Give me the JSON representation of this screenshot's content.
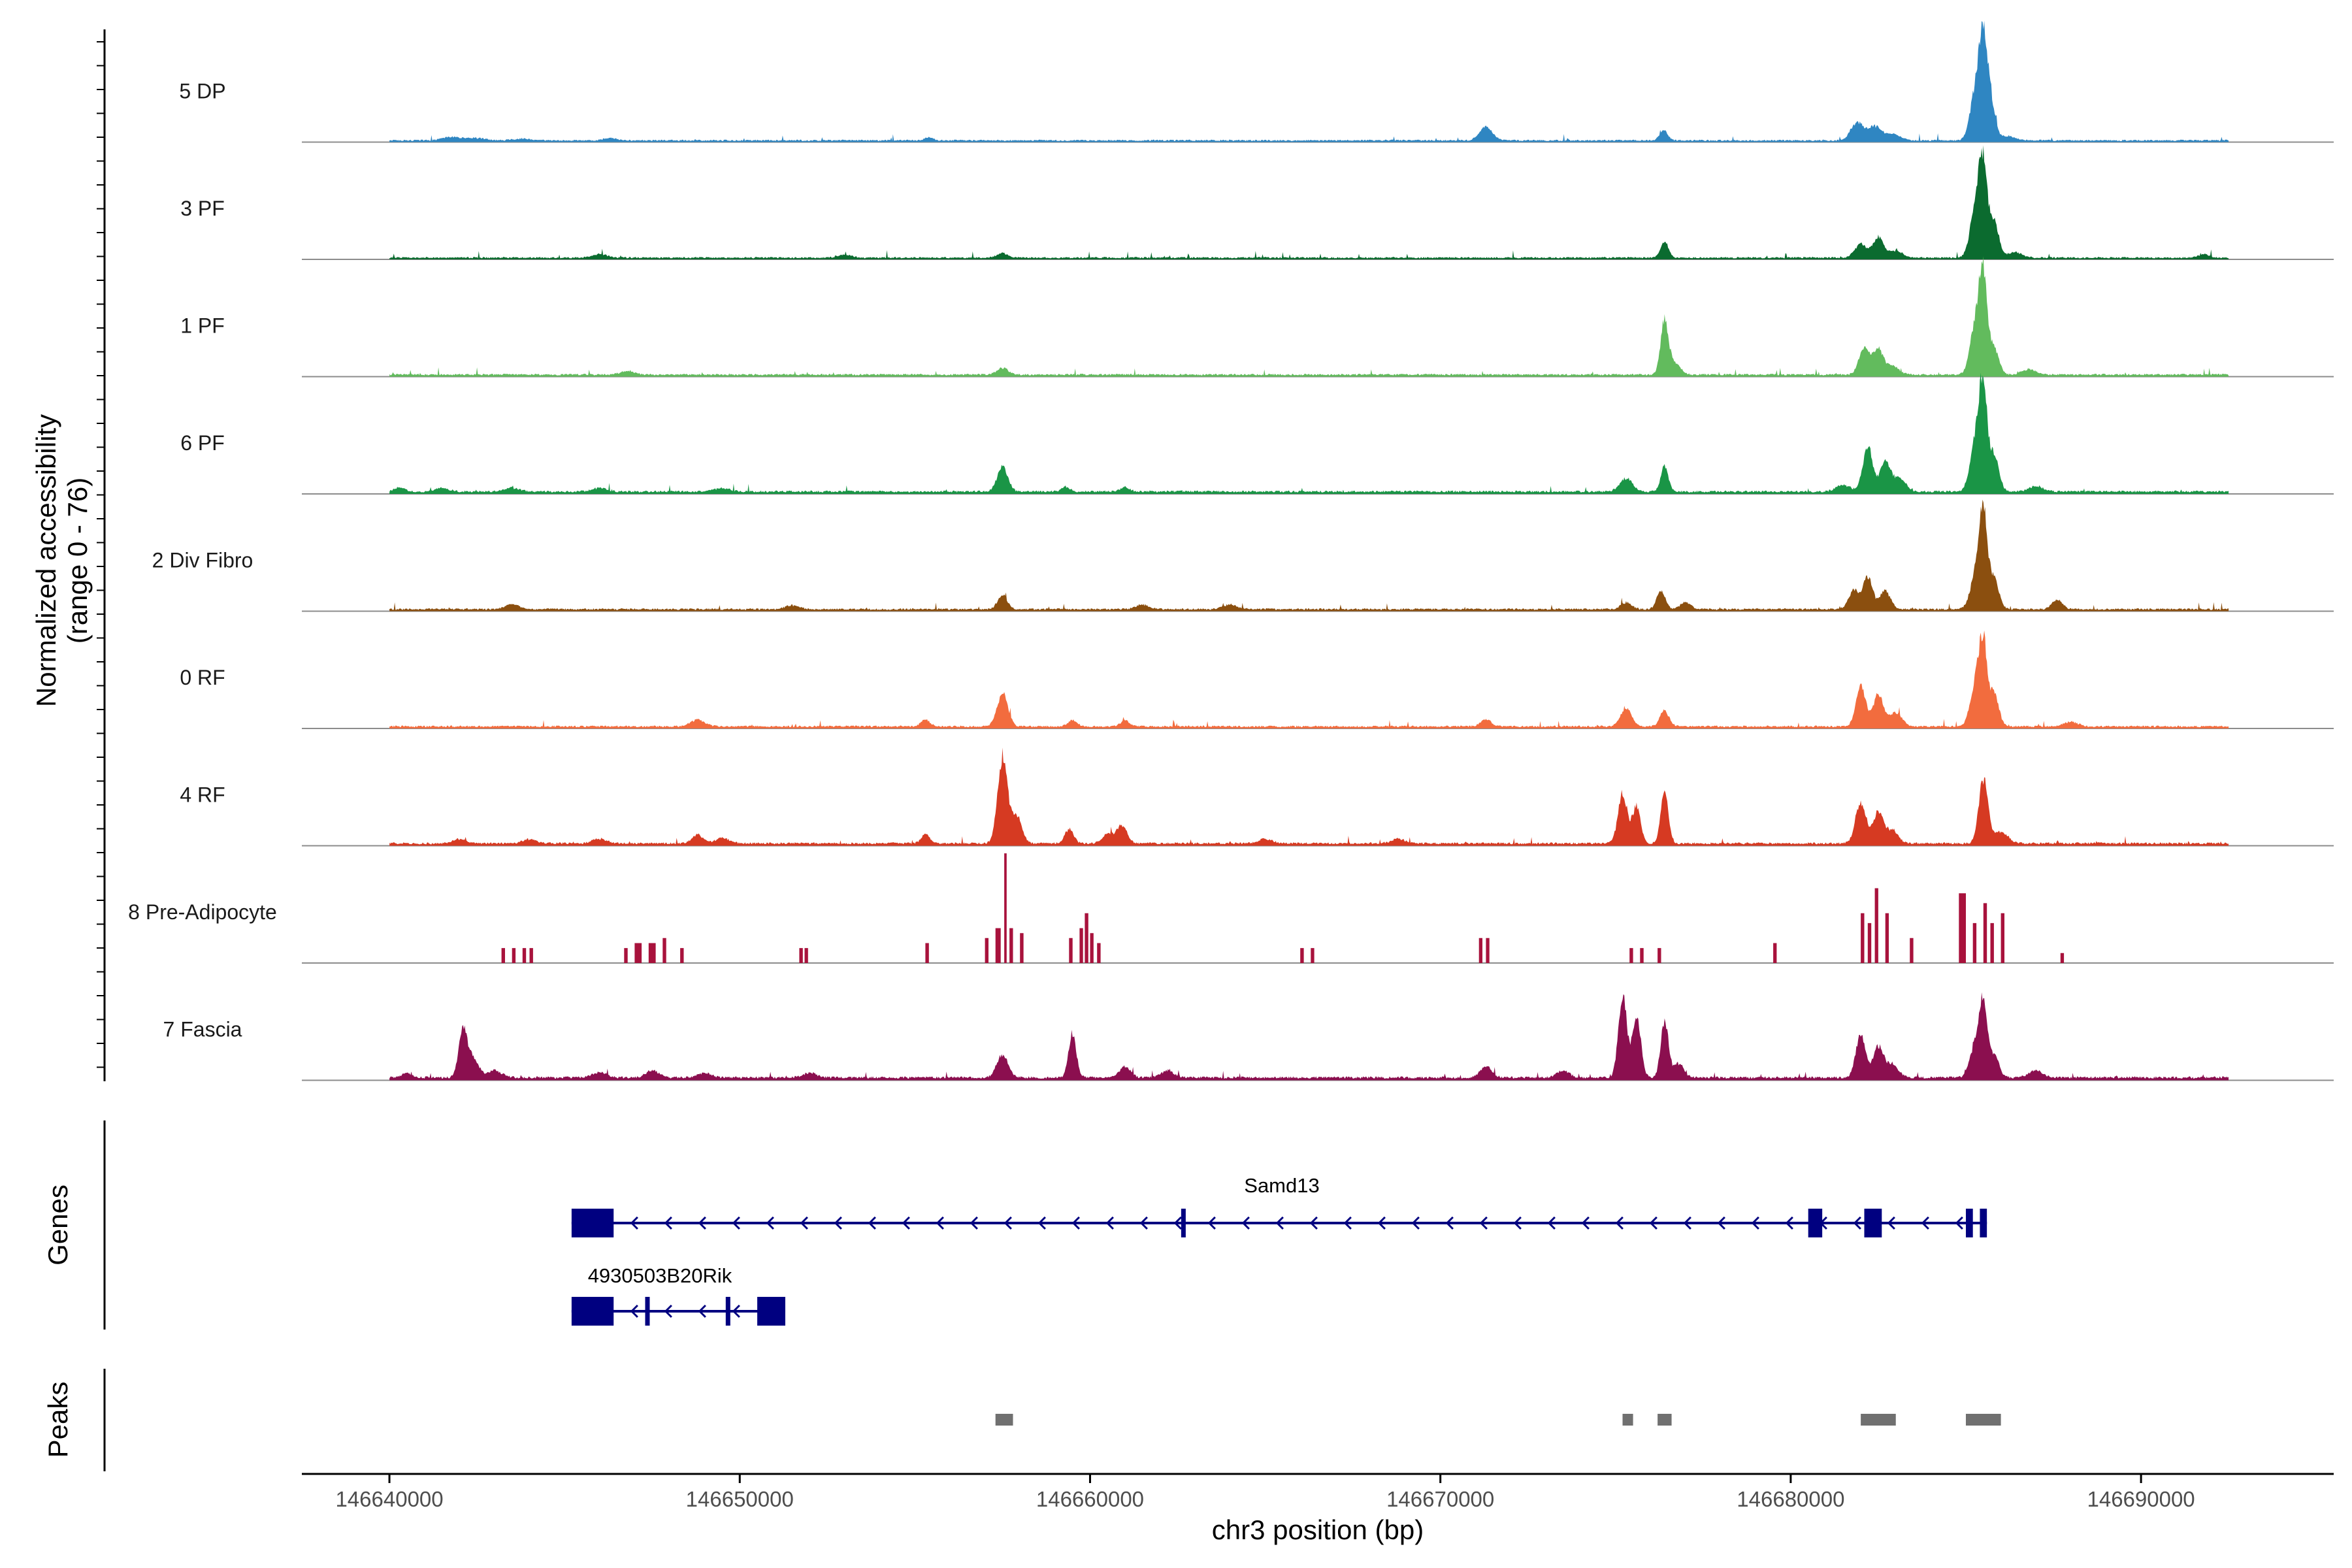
{
  "chart_data": {
    "type": "area",
    "subtype": "genome-coverage-tracks",
    "y_axis_title_line1": "Normalized accessibility",
    "y_axis_title_line2": "(range 0 - 76)",
    "y_range": [
      0,
      76
    ],
    "x_axis_title": "chr3 position (bp)",
    "x_range": [
      146637500,
      146695500
    ],
    "x_ticks": [
      146640000,
      146650000,
      146660000,
      146670000,
      146680000,
      146690000
    ],
    "x_tick_labels": [
      "146640000",
      "146650000",
      "146660000",
      "146670000",
      "146680000",
      "146690000"
    ],
    "signal_extent": [
      146640000,
      146692500
    ],
    "tracks": [
      {
        "name": "5 DP",
        "color": "#2f86c2",
        "style": "smooth",
        "baseline": 0.5,
        "peaks": [
          [
            146641800,
            0.8,
            250
          ],
          [
            146642500,
            0.5,
            250
          ],
          [
            146643800,
            0.4,
            250
          ],
          [
            146646300,
            0.6,
            150
          ],
          [
            146655400,
            0.7,
            120
          ],
          [
            146671300,
            3.0,
            180
          ],
          [
            146676300,
            0.8,
            100
          ],
          [
            146676400,
            1.8,
            100
          ],
          [
            146681900,
            4.0,
            180
          ],
          [
            146682400,
            3.0,
            180
          ],
          [
            146682900,
            1.5,
            200
          ],
          [
            146685300,
            12,
            160
          ],
          [
            146685500,
            18,
            110
          ],
          [
            146685700,
            9,
            130
          ],
          [
            146686200,
            1.0,
            200
          ]
        ]
      },
      {
        "name": "3 PF",
        "color": "#0b6b2f",
        "style": "smooth",
        "baseline": 0.5,
        "peaks": [
          [
            146646000,
            0.8,
            200
          ],
          [
            146653000,
            0.6,
            200
          ],
          [
            146657500,
            1.0,
            150
          ],
          [
            146676400,
            3.5,
            110
          ],
          [
            146682000,
            3.0,
            170
          ],
          [
            146682500,
            4.5,
            150
          ],
          [
            146683000,
            1.5,
            200
          ],
          [
            146685300,
            12,
            160
          ],
          [
            146685500,
            17,
            110
          ],
          [
            146685800,
            8,
            140
          ],
          [
            146686400,
            1.2,
            200
          ],
          [
            146691800,
            0.8,
            150
          ]
        ]
      },
      {
        "name": "1 PF",
        "color": "#62bb5d",
        "style": "smooth",
        "baseline": 0.6,
        "peaks": [
          [
            146646800,
            0.8,
            200
          ],
          [
            146657500,
            1.5,
            150
          ],
          [
            146676400,
            12,
            110
          ],
          [
            146676700,
            2.5,
            150
          ],
          [
            146682100,
            6.0,
            150
          ],
          [
            146682500,
            5.5,
            140
          ],
          [
            146682900,
            2.0,
            180
          ],
          [
            146685300,
            12,
            160
          ],
          [
            146685500,
            18,
            110
          ],
          [
            146685800,
            6,
            140
          ],
          [
            146686800,
            1.2,
            200
          ]
        ]
      },
      {
        "name": "6 PF",
        "color": "#1a9546",
        "style": "smooth",
        "baseline": 0.7,
        "peaks": [
          [
            146640300,
            1.0,
            150
          ],
          [
            146641500,
            0.8,
            200
          ],
          [
            146643500,
            0.8,
            200
          ],
          [
            146646000,
            0.8,
            200
          ],
          [
            146649500,
            0.8,
            200
          ],
          [
            146657500,
            5.5,
            150
          ],
          [
            146659300,
            1.0,
            120
          ],
          [
            146661000,
            1.0,
            120
          ],
          [
            146675300,
            3.0,
            180
          ],
          [
            146676400,
            5.5,
            110
          ],
          [
            146681500,
            1.5,
            200
          ],
          [
            146682200,
            10,
            140
          ],
          [
            146682700,
            7,
            140
          ],
          [
            146683100,
            3,
            180
          ],
          [
            146685300,
            12,
            160
          ],
          [
            146685500,
            19,
            110
          ],
          [
            146685800,
            8,
            140
          ],
          [
            146687000,
            1.2,
            200
          ]
        ]
      },
      {
        "name": "2 Div Fibro",
        "color": "#8b4f0f",
        "style": "smooth",
        "baseline": 0.6,
        "peaks": [
          [
            146643500,
            1.0,
            200
          ],
          [
            146651500,
            0.8,
            200
          ],
          [
            146657500,
            3.0,
            140
          ],
          [
            146661500,
            1.0,
            180
          ],
          [
            146664000,
            1.0,
            200
          ],
          [
            146675300,
            1.5,
            150
          ],
          [
            146676300,
            4.0,
            120
          ],
          [
            146677000,
            1.5,
            150
          ],
          [
            146681800,
            4.0,
            150
          ],
          [
            146682200,
            7.0,
            140
          ],
          [
            146682700,
            4.0,
            150
          ],
          [
            146685300,
            8,
            160
          ],
          [
            146685500,
            19,
            110
          ],
          [
            146685800,
            7,
            140
          ],
          [
            146687600,
            2.0,
            150
          ]
        ]
      },
      {
        "name": "0 RF",
        "color": "#f26c3e",
        "style": "smooth",
        "baseline": 0.6,
        "peaks": [
          [
            146648800,
            1.5,
            200
          ],
          [
            146655300,
            1.5,
            130
          ],
          [
            146657500,
            7.5,
            150
          ],
          [
            146659500,
            1.5,
            120
          ],
          [
            146661000,
            1.5,
            120
          ],
          [
            146671300,
            1.5,
            150
          ],
          [
            146675300,
            4.0,
            160
          ],
          [
            146676400,
            3.5,
            130
          ],
          [
            146682000,
            9,
            140
          ],
          [
            146682500,
            7,
            150
          ],
          [
            146683000,
            3,
            180
          ],
          [
            146685300,
            10,
            160
          ],
          [
            146685500,
            15,
            110
          ],
          [
            146685800,
            7,
            140
          ],
          [
            146688000,
            1.0,
            200
          ]
        ]
      },
      {
        "name": "4 RF",
        "color": "#d63a22",
        "style": "smooth",
        "baseline": 0.7,
        "peaks": [
          [
            146642000,
            1.0,
            180
          ],
          [
            146644000,
            0.9,
            200
          ],
          [
            146646000,
            1.0,
            200
          ],
          [
            146648800,
            2.0,
            150
          ],
          [
            146649500,
            1.2,
            200
          ],
          [
            146655300,
            2.0,
            120
          ],
          [
            146657500,
            19,
            140
          ],
          [
            146657900,
            6,
            150
          ],
          [
            146659400,
            3.0,
            130
          ],
          [
            146660500,
            2.0,
            150
          ],
          [
            146660900,
            4.0,
            150
          ],
          [
            146665000,
            1.0,
            200
          ],
          [
            146668800,
            1.0,
            200
          ],
          [
            146675200,
            11,
            130
          ],
          [
            146675600,
            8,
            120
          ],
          [
            146676400,
            11,
            110
          ],
          [
            146682000,
            9,
            150
          ],
          [
            146682500,
            7,
            140
          ],
          [
            146682900,
            3,
            160
          ],
          [
            146685500,
            14,
            130
          ],
          [
            146686000,
            2.5,
            200
          ]
        ]
      },
      {
        "name": "8 Pre-Adipocyte",
        "color": "#a8123c",
        "style": "step",
        "baseline": 0,
        "blocks": [
          [
            146643200,
            146643300,
            3
          ],
          [
            146643500,
            146643600,
            3
          ],
          [
            146643800,
            146643900,
            3
          ],
          [
            146644000,
            146644100,
            3
          ],
          [
            146646700,
            146646800,
            3
          ],
          [
            146647000,
            146647200,
            4
          ],
          [
            146647400,
            146647600,
            4
          ],
          [
            146647800,
            146647900,
            5
          ],
          [
            146648300,
            146648400,
            3
          ],
          [
            146651700,
            146651800,
            3
          ],
          [
            146651850,
            146651950,
            3
          ],
          [
            146655300,
            146655400,
            4
          ],
          [
            146657000,
            146657100,
            5
          ],
          [
            146657300,
            146657450,
            7
          ],
          [
            146657550,
            146657620,
            22
          ],
          [
            146657700,
            146657800,
            7
          ],
          [
            146658000,
            146658100,
            6
          ],
          [
            146659400,
            146659500,
            5
          ],
          [
            146659700,
            146659800,
            7
          ],
          [
            146659850,
            146659950,
            10
          ],
          [
            146660000,
            146660100,
            6
          ],
          [
            146660200,
            146660300,
            4
          ],
          [
            146666000,
            146666100,
            3
          ],
          [
            146666300,
            146666400,
            3
          ],
          [
            146671100,
            146671200,
            5
          ],
          [
            146671300,
            146671400,
            5
          ],
          [
            146675400,
            146675500,
            3
          ],
          [
            146675700,
            146675800,
            3
          ],
          [
            146676200,
            146676300,
            3
          ],
          [
            146679500,
            146679600,
            4
          ],
          [
            146682000,
            146682100,
            10
          ],
          [
            146682200,
            146682300,
            8
          ],
          [
            146682400,
            146682500,
            15
          ],
          [
            146682700,
            146682800,
            10
          ],
          [
            146683400,
            146683500,
            5
          ],
          [
            146684800,
            146685000,
            14
          ],
          [
            146685200,
            146685300,
            8
          ],
          [
            146685500,
            146685600,
            12
          ],
          [
            146685700,
            146685800,
            8
          ],
          [
            146686000,
            146686100,
            10
          ],
          [
            146687700,
            146687800,
            2
          ]
        ]
      },
      {
        "name": "7 Fascia",
        "color": "#8b0f4f",
        "style": "smooth",
        "baseline": 0.8,
        "peaks": [
          [
            146640500,
            1.0,
            150
          ],
          [
            146642100,
            11,
            120
          ],
          [
            146642400,
            4,
            150
          ],
          [
            146643000,
            1.5,
            200
          ],
          [
            146646000,
            1.2,
            200
          ],
          [
            146647500,
            1.5,
            180
          ],
          [
            146649000,
            1.0,
            200
          ],
          [
            146652000,
            1.0,
            200
          ],
          [
            146657500,
            5.0,
            160
          ],
          [
            146659500,
            9.5,
            110
          ],
          [
            146661000,
            2.5,
            150
          ],
          [
            146662200,
            1.5,
            180
          ],
          [
            146671300,
            2.5,
            160
          ],
          [
            146673500,
            1.5,
            180
          ],
          [
            146675200,
            18,
            120
          ],
          [
            146675600,
            14,
            120
          ],
          [
            146676400,
            12,
            110
          ],
          [
            146676800,
            3,
            150
          ],
          [
            146682000,
            9.5,
            140
          ],
          [
            146682500,
            7,
            140
          ],
          [
            146682900,
            3,
            170
          ],
          [
            146685300,
            8,
            160
          ],
          [
            146685500,
            14,
            110
          ],
          [
            146685800,
            5,
            140
          ],
          [
            146687000,
            1.5,
            200
          ]
        ]
      }
    ],
    "genes_label": "Genes",
    "genes": [
      {
        "name": "Samd13",
        "start": 146645200,
        "end": 146685600,
        "strand": "-",
        "exons": [
          [
            146645200,
            146646400
          ],
          [
            146662600,
            146662700
          ],
          [
            146680500,
            146680900
          ],
          [
            146682100,
            146682600
          ],
          [
            146685000,
            146685200
          ],
          [
            146685400,
            146685600
          ]
        ]
      },
      {
        "name": "4930503B20Rik",
        "start": 146645200,
        "end": 146651300,
        "strand": "-",
        "exons": [
          [
            146645200,
            146646400
          ],
          [
            146647300,
            146647400
          ],
          [
            146649600,
            146649700
          ],
          [
            146650500,
            146651300
          ]
        ]
      }
    ],
    "peaks_label": "Peaks",
    "peak_regions": [
      [
        146657300,
        146657800
      ],
      [
        146675200,
        146675500
      ],
      [
        146676200,
        146676600
      ],
      [
        146682000,
        146683000
      ],
      [
        146685000,
        146686000
      ]
    ],
    "colors": {
      "axis": "#000000",
      "baseline": "#8c8c8c",
      "gene": "#000080",
      "peak": "#707070",
      "tick_label": "#4d4d4d"
    }
  }
}
